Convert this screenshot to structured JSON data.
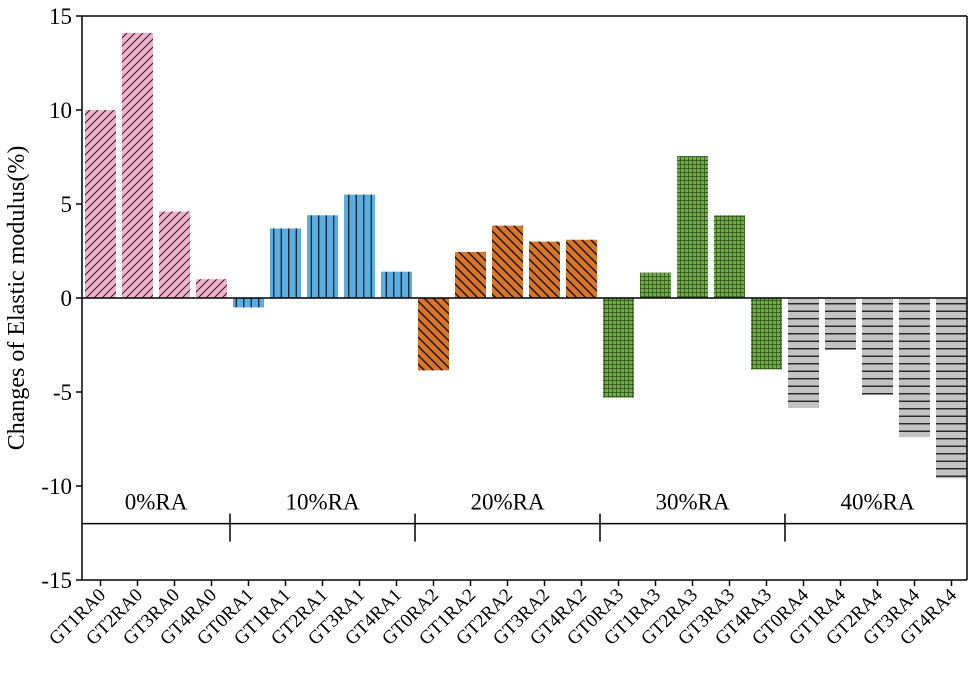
{
  "chart_data": {
    "type": "bar",
    "title": "",
    "xlabel": "",
    "ylabel": "Changes of Elastic modulus(%)",
    "ylim": [
      -15,
      15
    ],
    "yticks": [
      15,
      10,
      5,
      0,
      -5,
      -10,
      -15
    ],
    "grid": false,
    "categories": [
      "GT1RA0",
      "GT2RA0",
      "GT3RA0",
      "GT4RA0",
      "GT0RA1",
      "GT1RA1",
      "GT2RA1",
      "GT3RA1",
      "GT4RA1",
      "GT0RA2",
      "GT1RA2",
      "GT2RA2",
      "GT3RA2",
      "GT4RA2",
      "GT0RA3",
      "GT1RA3",
      "GT2RA3",
      "GT3RA3",
      "GT4RA3",
      "GT0RA4",
      "GT1RA4",
      "GT2RA4",
      "GT3RA4",
      "GT4RA4"
    ],
    "values": [
      10.0,
      14.1,
      4.6,
      1.0,
      -0.5,
      3.7,
      4.4,
      5.5,
      1.4,
      -3.85,
      2.45,
      3.85,
      3.0,
      3.1,
      -5.3,
      1.35,
      7.55,
      4.4,
      -3.8,
      -5.85,
      -2.75,
      -5.15,
      -7.4,
      -9.6
    ],
    "groups": [
      {
        "label": "0%RA",
        "count": 4,
        "color": "#f4b1cb",
        "pattern": "diag-fwd"
      },
      {
        "label": "10%RA",
        "count": 5,
        "color": "#5baee2",
        "pattern": "vertical"
      },
      {
        "label": "20%RA",
        "count": 5,
        "color": "#d9752b",
        "pattern": "diag-back"
      },
      {
        "label": "30%RA",
        "count": 5,
        "color": "#6db040",
        "pattern": "grid"
      },
      {
        "label": "40%RA",
        "count": 5,
        "color": "#c3c3c3",
        "pattern": "horizontal"
      }
    ],
    "group_label_y": -12
  }
}
